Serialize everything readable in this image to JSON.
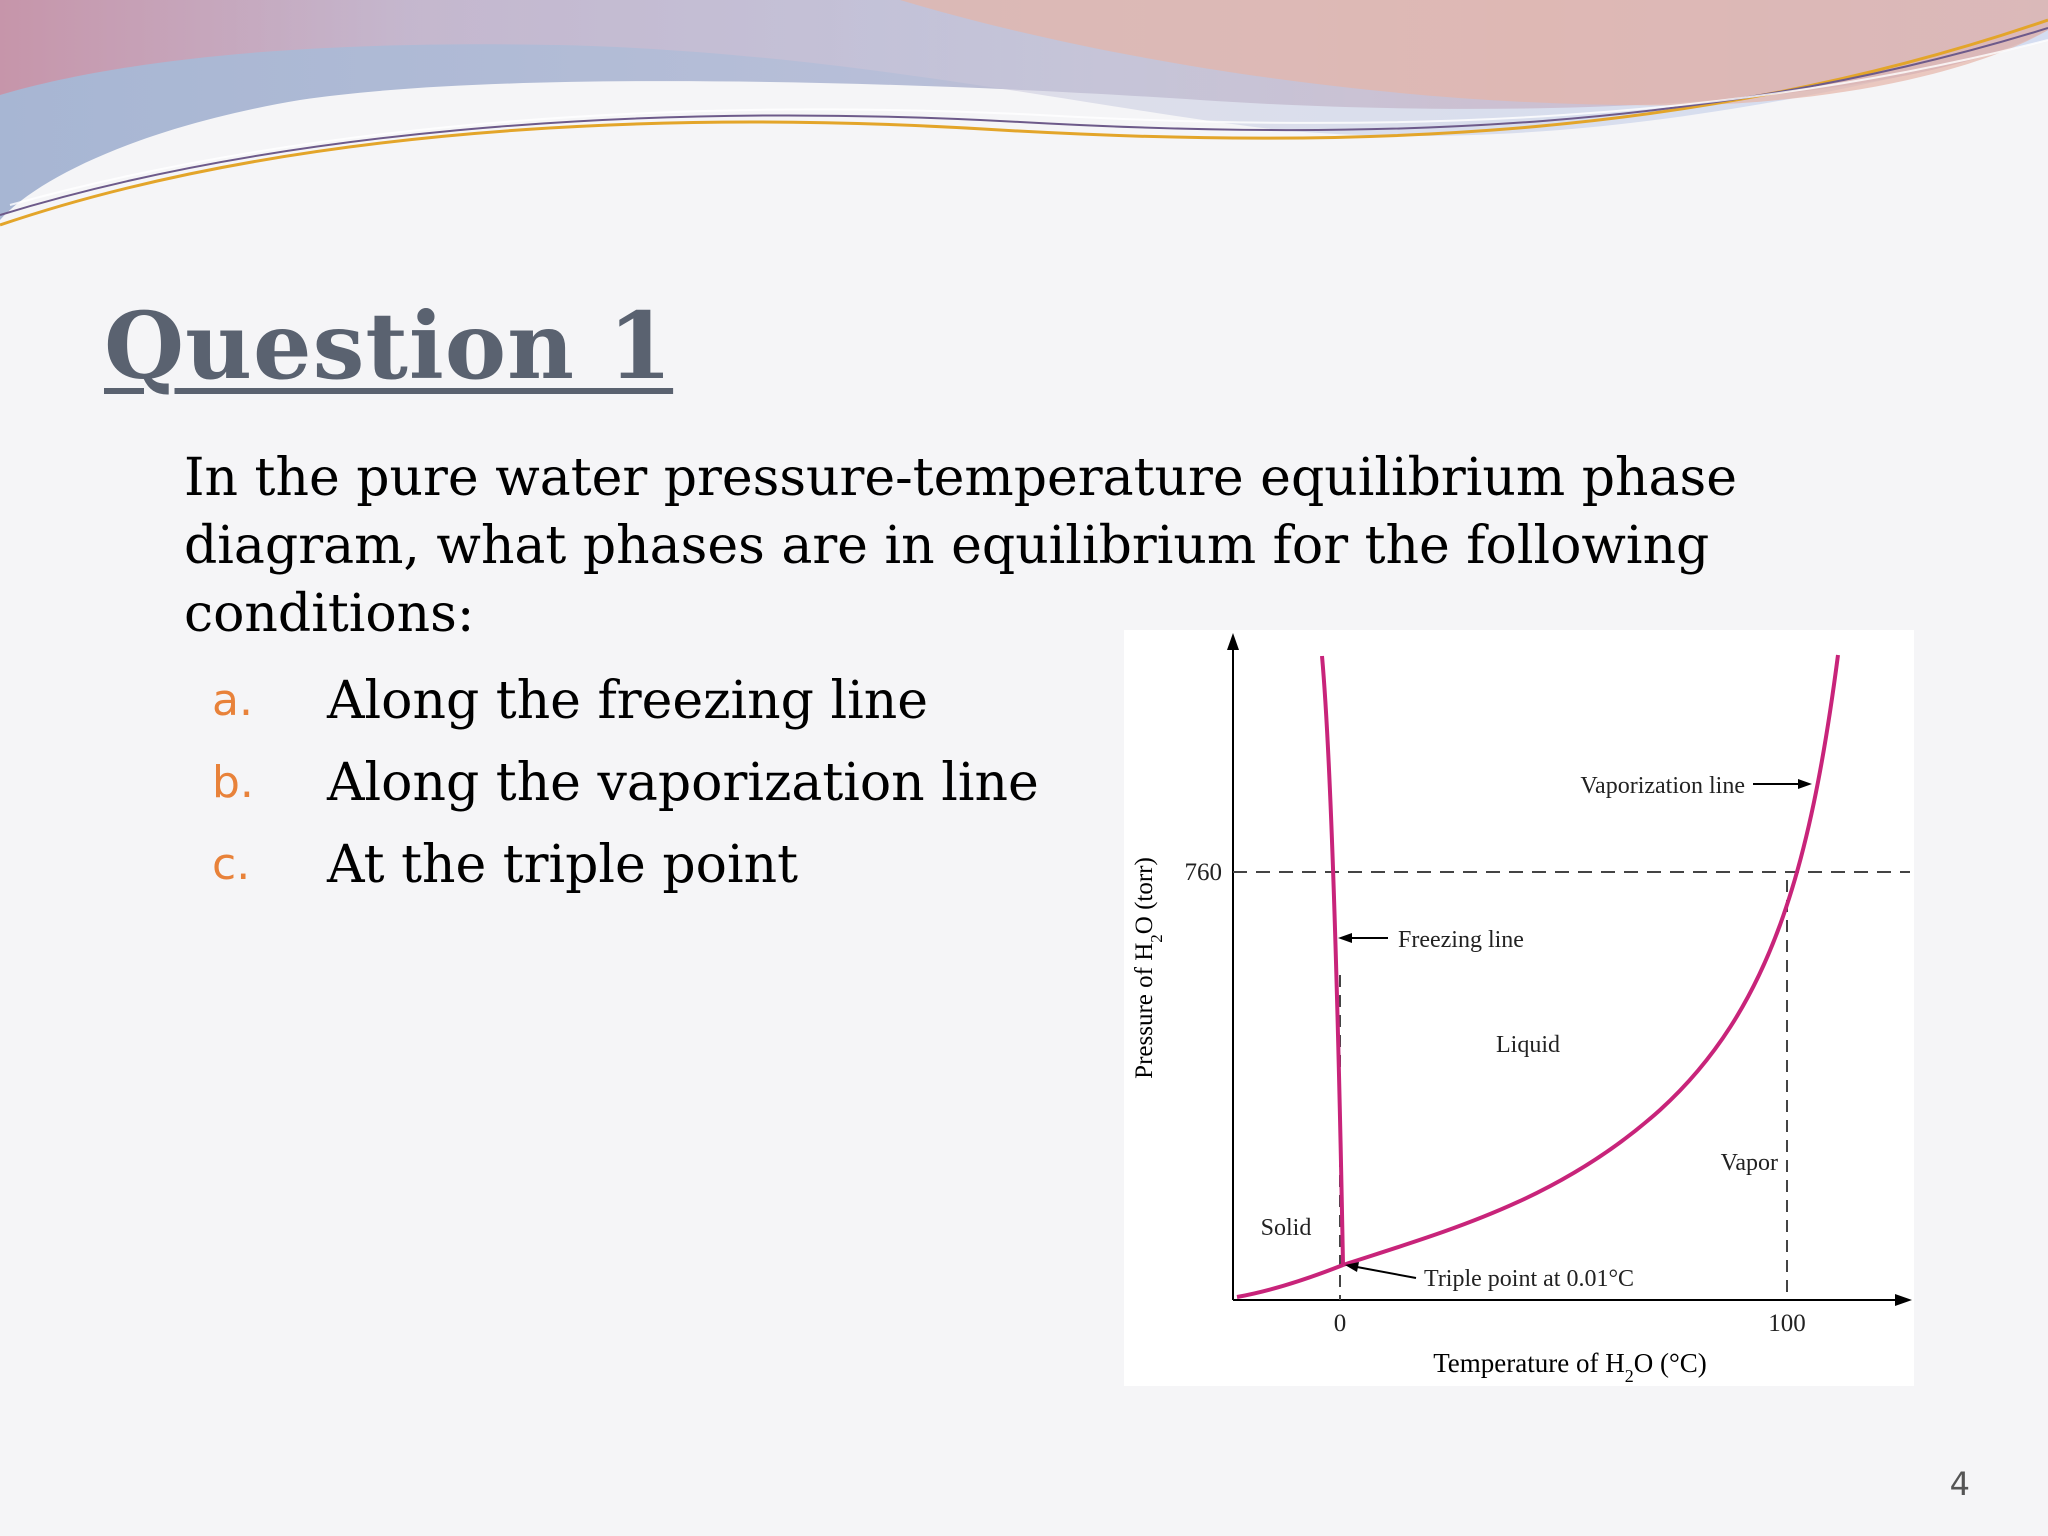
{
  "slide": {
    "title": "Question 1",
    "question": "In the pure water pressure-temperature equilibrium phase diagram, what phases are in equilibrium for the following conditions:",
    "options": [
      {
        "marker": "a.",
        "text": "Along the freezing line"
      },
      {
        "marker": "b.",
        "text": "Along the vaporization line"
      },
      {
        "marker": "c.",
        "text": "At the triple point"
      }
    ],
    "page_number": "4"
  },
  "diagram": {
    "y_axis_label_main": "Pressure of H",
    "y_axis_label_sub": "2",
    "y_axis_label_end": "O (torr)",
    "x_axis_label_main": "Temperature of H",
    "x_axis_label_sub": "2",
    "x_axis_label_end": "O (°C)",
    "y_tick_760": "760",
    "x_tick_0": "0",
    "x_tick_100": "100",
    "labels": {
      "vaporization_line": "Vaporization line",
      "freezing_line": "Freezing line",
      "liquid": "Liquid",
      "vapor": "Vapor",
      "solid": "Solid",
      "triple_point": "Triple point at 0.01°C"
    },
    "curve_color": "#c8247a"
  }
}
